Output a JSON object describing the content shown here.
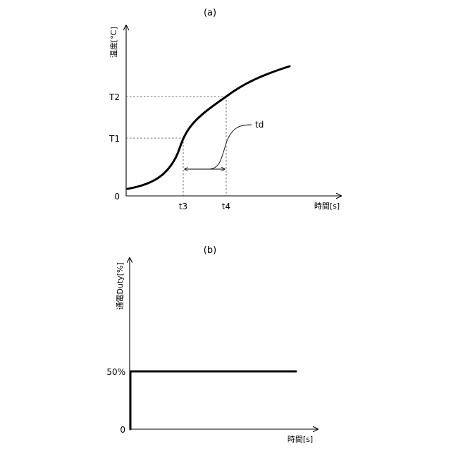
{
  "panel_a": {
    "caption": "(a)",
    "y_axis_label": "温度[°C]",
    "x_axis_label": "時間[s]",
    "y_ticks": [
      "T2",
      "T1",
      "0"
    ],
    "x_ticks": [
      "t3",
      "t4"
    ],
    "delay_label": "td"
  },
  "panel_b": {
    "caption": "(b)",
    "y_axis_label": "通電Duty[%]",
    "x_axis_label": "時間[s]",
    "y_ticks": [
      "50%",
      "0"
    ],
    "duty_percent": 50
  }
}
